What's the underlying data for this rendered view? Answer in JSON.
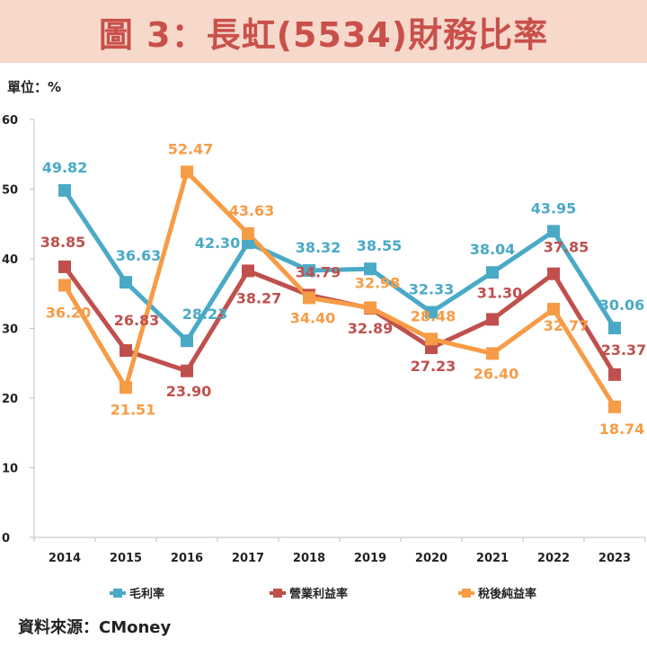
{
  "title": "圖 3：長虹(5534)財務比率",
  "unit_label": "單位：%",
  "source_label": "資料來源：CMoney",
  "colors": {
    "title_bg": "#f7d9cc",
    "title_text": "#c9504a"
  },
  "chart_data": {
    "type": "line",
    "categories": [
      "2014",
      "2015",
      "2016",
      "2017",
      "2018",
      "2019",
      "2020",
      "2021",
      "2022",
      "2023"
    ],
    "series": [
      {
        "name": "毛利率",
        "color": "#4aaac6",
        "values": [
          49.82,
          36.63,
          28.23,
          42.3,
          38.32,
          38.55,
          32.33,
          38.04,
          43.95,
          30.06
        ],
        "labels": [
          "49.82",
          "36.63",
          "28.23",
          "42.30",
          "38.32",
          "38.55",
          "32.33",
          "38.04",
          "43.95",
          "30.06"
        ]
      },
      {
        "name": "營業利益率",
        "color": "#c0504d",
        "values": [
          38.85,
          26.83,
          23.9,
          38.27,
          34.79,
          32.89,
          27.23,
          31.3,
          37.85,
          23.37
        ],
        "labels": [
          "38.85",
          "26.83",
          "23.90",
          "38.27",
          "34.79",
          "32.89",
          "27.23",
          "31.30",
          "37.85",
          "23.37"
        ]
      },
      {
        "name": "稅後純益率",
        "color": "#f79c46",
        "values": [
          36.2,
          21.51,
          52.47,
          43.63,
          34.4,
          32.98,
          28.48,
          26.4,
          32.77,
          18.74
        ],
        "labels": [
          "36.20",
          "21.51",
          "52.47",
          "43.63",
          "34.40",
          "32.98",
          "28.48",
          "26.40",
          "32.77",
          "18.74"
        ]
      }
    ],
    "yticks": [
      "0",
      "10",
      "20",
      "30",
      "40",
      "50",
      "60"
    ],
    "ylim": [
      0,
      60
    ],
    "grid": false,
    "legend_position": "bottom"
  }
}
